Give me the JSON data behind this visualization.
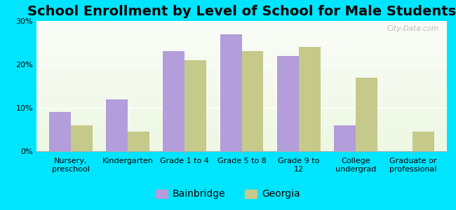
{
  "title": "School Enrollment by Level of School for Male Students",
  "categories": [
    "Nursery,\npreschool",
    "Kindergarten",
    "Grade 1 to 4",
    "Grade 5 to 8",
    "Grade 9 to\n12",
    "College\nundergrad",
    "Graduate or\nprofessional"
  ],
  "bainbridge": [
    9.0,
    12.0,
    23.0,
    27.0,
    22.0,
    6.0,
    0.0
  ],
  "georgia": [
    6.0,
    4.5,
    21.0,
    23.0,
    24.0,
    17.0,
    4.5
  ],
  "bainbridge_color": "#b39ddb",
  "georgia_color": "#c5c98a",
  "background_color": "#00e5ff",
  "ylim": [
    0,
    30
  ],
  "yticks": [
    0,
    10,
    20,
    30
  ],
  "ytick_labels": [
    "0%",
    "10%",
    "20%",
    "30%"
  ],
  "bar_width": 0.38,
  "title_fontsize": 14,
  "tick_fontsize": 8,
  "legend_fontsize": 10,
  "watermark": "City-Data.com"
}
